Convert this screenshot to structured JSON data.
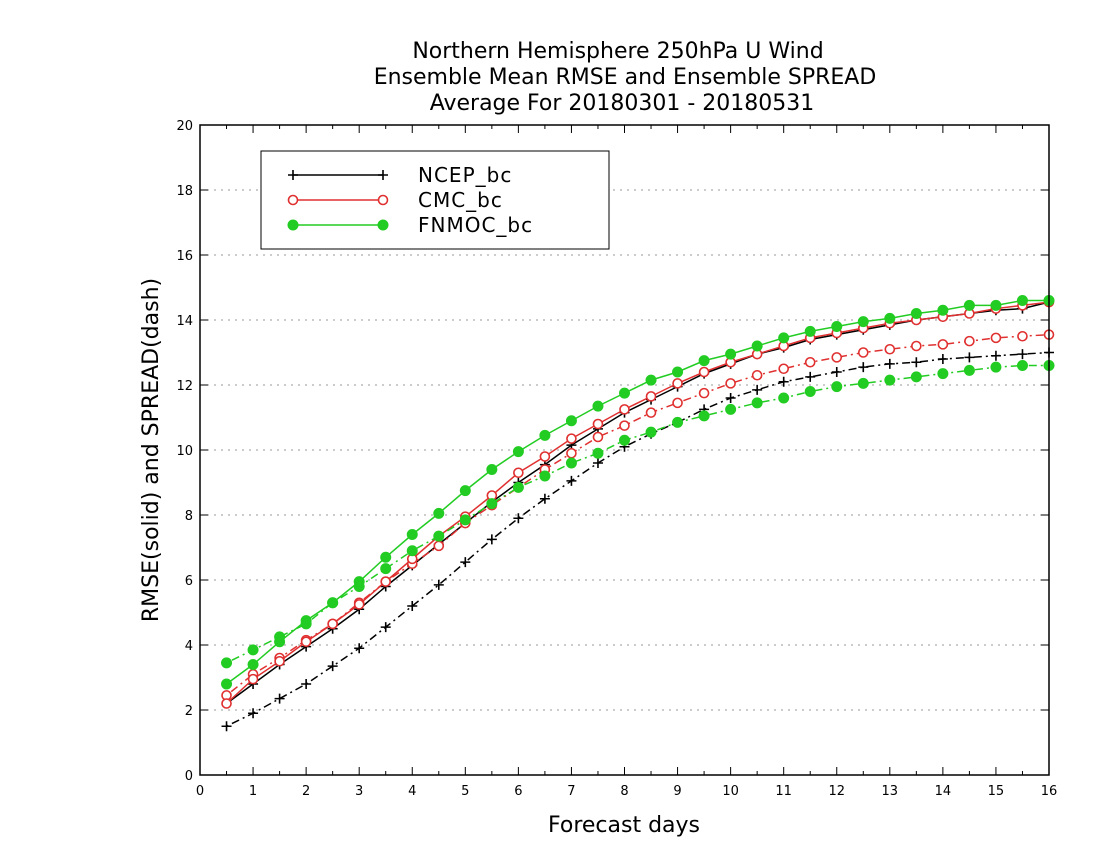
{
  "chart_data": {
    "type": "line",
    "title_lines": [
      "Northern Hemisphere 250hPa U Wind",
      "Ensemble Mean RMSE and Ensemble SPREAD",
      "Average For 20180301 - 20180531"
    ],
    "xlabel": "Forecast days",
    "ylabel": "RMSE(solid) and SPREAD(dash)",
    "xlim": [
      0,
      16
    ],
    "ylim": [
      0,
      20
    ],
    "xticks": [
      "0",
      "1",
      "2",
      "3",
      "4",
      "5",
      "6",
      "7",
      "8",
      "9",
      "10",
      "11",
      "12",
      "13",
      "14",
      "15",
      "16"
    ],
    "yticks": [
      "0",
      "2",
      "4",
      "6",
      "8",
      "10",
      "12",
      "14",
      "16",
      "18",
      "20"
    ],
    "grid": "horizontal dotted",
    "legend_position": "top-left",
    "x": [
      0.5,
      1,
      1.5,
      2,
      2.5,
      3,
      3.5,
      4,
      4.5,
      5,
      5.5,
      6,
      6.5,
      7,
      7.5,
      8,
      8.5,
      9,
      9.5,
      10,
      10.5,
      11,
      11.5,
      12,
      12.5,
      13,
      13.5,
      14,
      14.5,
      15,
      15.5,
      16
    ],
    "series": [
      {
        "name": "NCEP_bc",
        "color": "#000000",
        "marker": "plus",
        "rmse": [
          2.2,
          2.8,
          3.4,
          3.95,
          4.5,
          5.1,
          5.8,
          6.45,
          7.1,
          7.75,
          8.4,
          9.0,
          9.55,
          10.15,
          10.65,
          11.15,
          11.55,
          11.95,
          12.35,
          12.65,
          12.95,
          13.15,
          13.4,
          13.55,
          13.7,
          13.85,
          14.0,
          14.1,
          14.2,
          14.3,
          14.35,
          14.55
        ],
        "spread": [
          1.5,
          1.9,
          2.35,
          2.8,
          3.35,
          3.9,
          4.55,
          5.2,
          5.85,
          6.55,
          7.25,
          7.9,
          8.5,
          9.05,
          9.6,
          10.1,
          10.5,
          10.85,
          11.25,
          11.6,
          11.85,
          12.1,
          12.25,
          12.4,
          12.55,
          12.65,
          12.7,
          12.8,
          12.85,
          12.9,
          12.95,
          13.0
        ]
      },
      {
        "name": "CMC_bc",
        "color": "#e03030",
        "marker": "open-circle",
        "rmse": [
          2.2,
          2.95,
          3.5,
          4.1,
          4.65,
          5.25,
          5.95,
          6.65,
          7.35,
          7.95,
          8.6,
          9.3,
          9.8,
          10.35,
          10.8,
          11.25,
          11.65,
          12.05,
          12.4,
          12.7,
          12.95,
          13.2,
          13.45,
          13.6,
          13.75,
          13.9,
          14.0,
          14.1,
          14.2,
          14.35,
          14.45,
          14.55
        ],
        "spread": [
          2.45,
          3.1,
          3.6,
          4.15,
          4.65,
          5.3,
          5.95,
          6.5,
          7.05,
          7.75,
          8.3,
          8.85,
          9.4,
          9.9,
          10.4,
          10.75,
          11.15,
          11.45,
          11.75,
          12.05,
          12.3,
          12.5,
          12.7,
          12.85,
          13.0,
          13.1,
          13.2,
          13.25,
          13.35,
          13.45,
          13.5,
          13.55
        ]
      },
      {
        "name": "FNMOC_bc",
        "color": "#22cc22",
        "marker": "filled-circle",
        "rmse": [
          2.8,
          3.4,
          4.1,
          4.75,
          5.3,
          5.95,
          6.7,
          7.4,
          8.05,
          8.75,
          9.4,
          9.95,
          10.45,
          10.9,
          11.35,
          11.75,
          12.15,
          12.4,
          12.75,
          12.95,
          13.2,
          13.45,
          13.65,
          13.8,
          13.95,
          14.05,
          14.2,
          14.3,
          14.45,
          14.45,
          14.6,
          14.6
        ],
        "spread": [
          3.45,
          3.85,
          4.25,
          4.65,
          5.3,
          5.8,
          6.35,
          6.9,
          7.35,
          7.85,
          8.35,
          8.85,
          9.2,
          9.6,
          9.9,
          10.3,
          10.55,
          10.85,
          11.05,
          11.25,
          11.45,
          11.6,
          11.8,
          11.95,
          12.05,
          12.15,
          12.25,
          12.35,
          12.45,
          12.55,
          12.6,
          12.6
        ]
      }
    ]
  }
}
